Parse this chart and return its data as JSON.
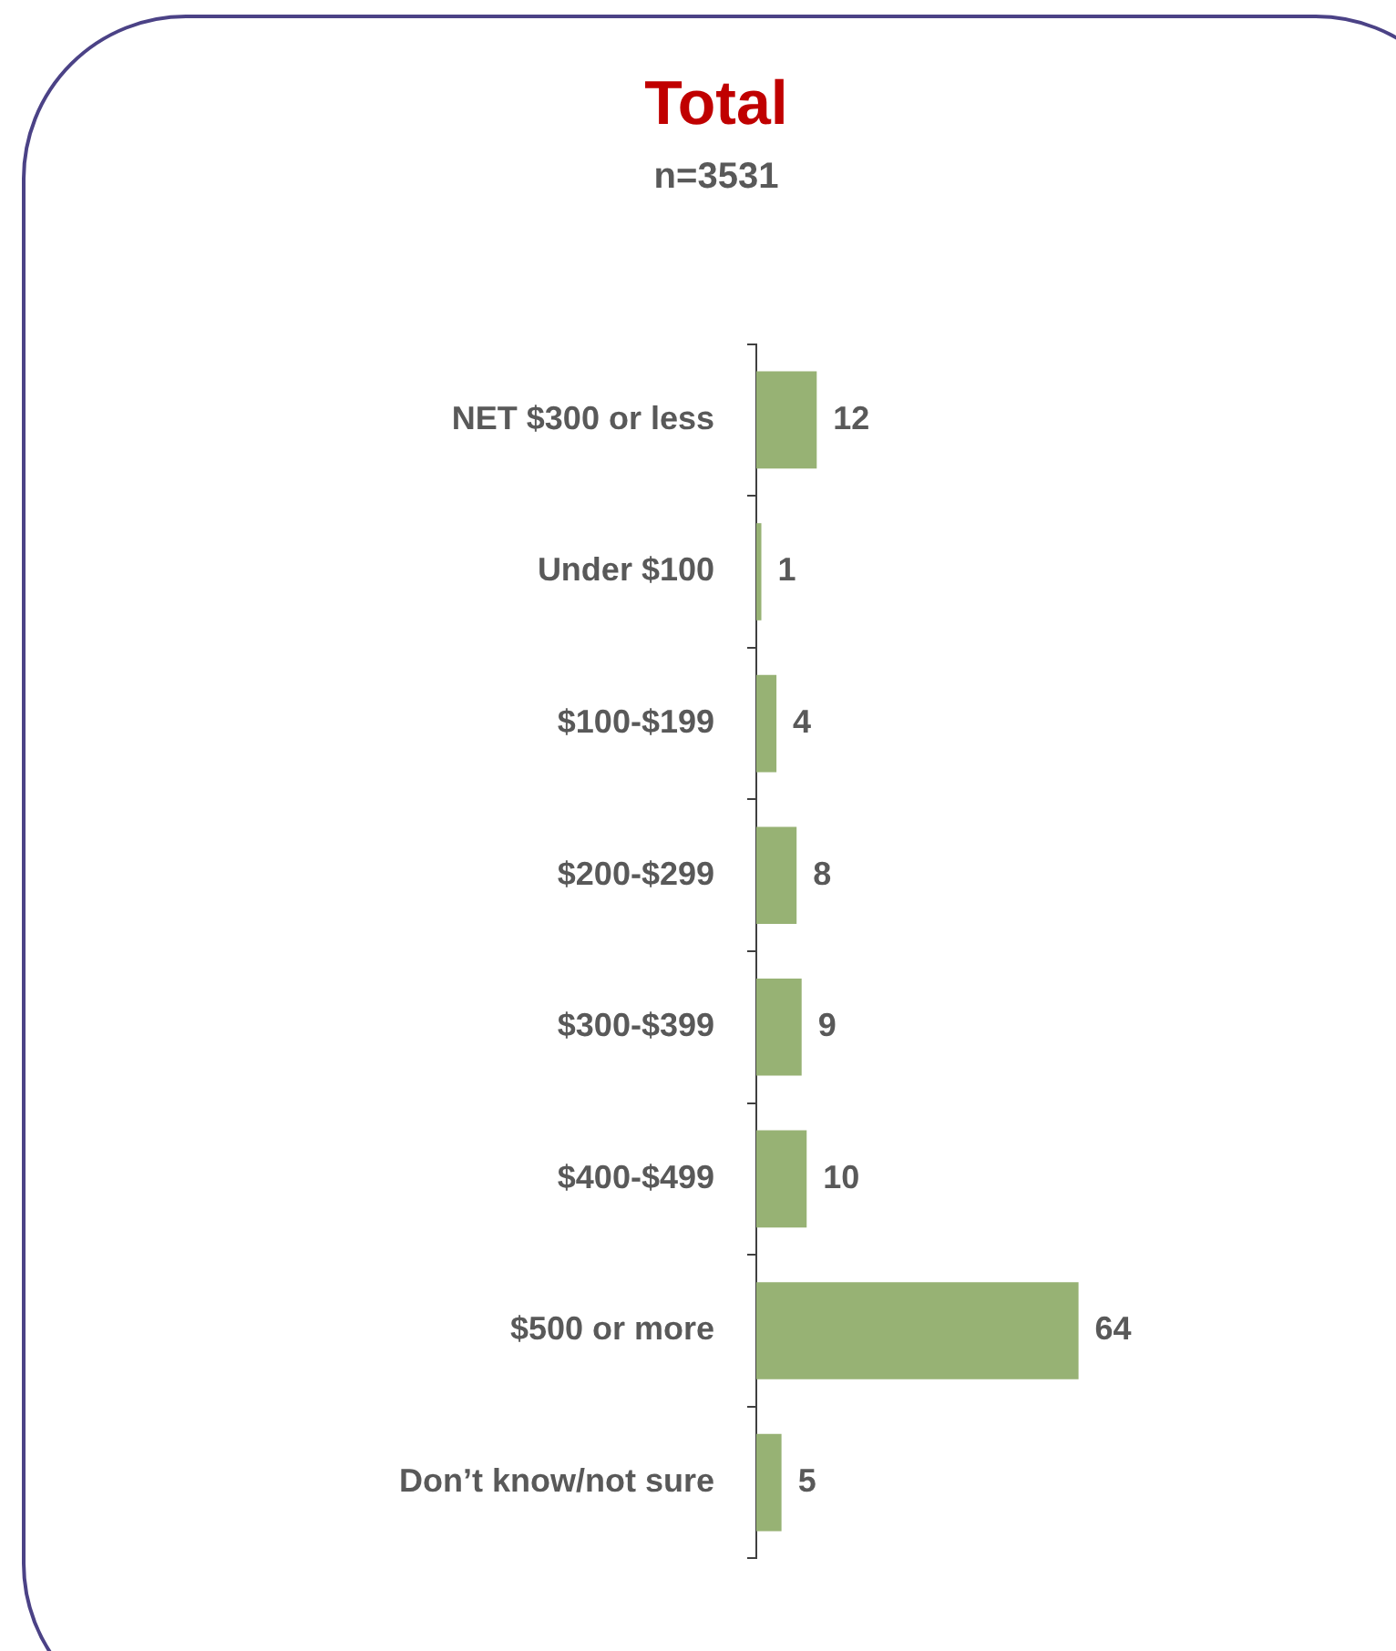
{
  "chart_data": {
    "type": "bar",
    "orientation": "horizontal",
    "title": "Total",
    "subtitle": "n=3531",
    "categories": [
      "NET $300 or less",
      "Under $100",
      "$100-$199",
      "$200-$299",
      "$300-$399",
      "$400-$499",
      "$500 or more",
      "Don’t know/not sure"
    ],
    "values": [
      12,
      1,
      4,
      8,
      9,
      10,
      64,
      5
    ],
    "color": "#97b274",
    "data_labels": true,
    "grid": false,
    "legend": false,
    "tick_labels": "y"
  }
}
